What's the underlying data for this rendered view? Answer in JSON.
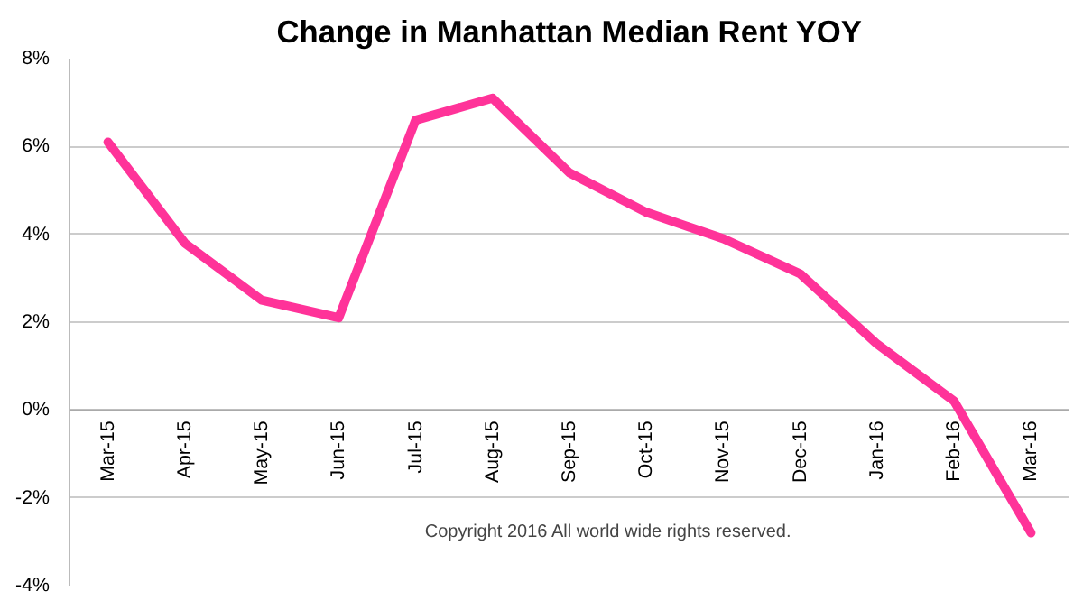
{
  "chart_data": {
    "type": "line",
    "title": "Change in Manhattan Median Rent YOY",
    "categories": [
      "Mar-15",
      "Apr-15",
      "May-15",
      "Jun-15",
      "Jul-15",
      "Aug-15",
      "Sep-15",
      "Oct-15",
      "Nov-15",
      "Dec-15",
      "Jan-16",
      "Feb-16",
      "Mar-16"
    ],
    "series": [
      {
        "color": "#ff3399",
        "values": [
          6.1,
          3.8,
          2.5,
          2.1,
          6.6,
          7.1,
          5.4,
          4.5,
          3.9,
          3.1,
          1.5,
          0.2,
          -2.8
        ]
      }
    ],
    "ylim": [
      -4,
      8
    ],
    "yticks": [
      {
        "value": -4,
        "label": "-4%"
      },
      {
        "value": -2,
        "label": "-2%"
      },
      {
        "value": 0,
        "label": "0%"
      },
      {
        "value": 2,
        "label": "2%"
      },
      {
        "value": 4,
        "label": "4%"
      },
      {
        "value": 6,
        "label": "6%"
      },
      {
        "value": 8,
        "label": "8%"
      }
    ],
    "grid": "y",
    "marker": "none",
    "line_style": "solid",
    "annotations": [
      "Copyright 2016  All world wide rights reserved."
    ]
  }
}
